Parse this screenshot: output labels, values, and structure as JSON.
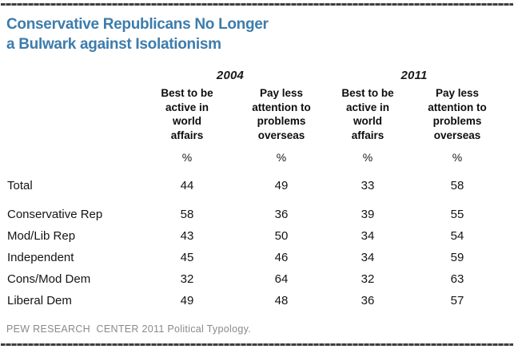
{
  "page": {
    "title_line1": "Conservative Republicans No Longer",
    "title_line2": "a Bulwark against Isolationism"
  },
  "colors": {
    "title_blue": "#3d7cac",
    "body_text": "#141414",
    "source_gray": "#8a8a8a",
    "rule_dark": "#3f3f3f"
  },
  "chart_data": {
    "type": "table",
    "title": "Conservative Republicans No Longer a Bulwark against Isolationism",
    "year_groups": [
      "2004",
      "2011"
    ],
    "column_headers": [
      "Best to be\nactive in\nworld\naffairs",
      "Pay less\nattention to\nproblems\noverseas",
      "Best to be\nactive in\nworld\naffairs",
      "Pay less\nattention to\nproblems\noverseas"
    ],
    "unit_row": [
      "%",
      "%",
      "%",
      "%"
    ],
    "rows": [
      {
        "label": "Total",
        "values": [
          44,
          49,
          33,
          58
        ]
      },
      {
        "label": "Conservative Rep",
        "values": [
          58,
          36,
          39,
          55
        ]
      },
      {
        "label": "Mod/Lib Rep",
        "values": [
          43,
          50,
          34,
          54
        ]
      },
      {
        "label": "Independent",
        "values": [
          45,
          46,
          34,
          59
        ]
      },
      {
        "label": "Cons/Mod Dem",
        "values": [
          32,
          64,
          32,
          63
        ]
      },
      {
        "label": "Liberal Dem",
        "values": [
          49,
          48,
          36,
          57
        ]
      }
    ],
    "source": "PEW RESEARCH  CENTER 2011 Political Typology."
  }
}
